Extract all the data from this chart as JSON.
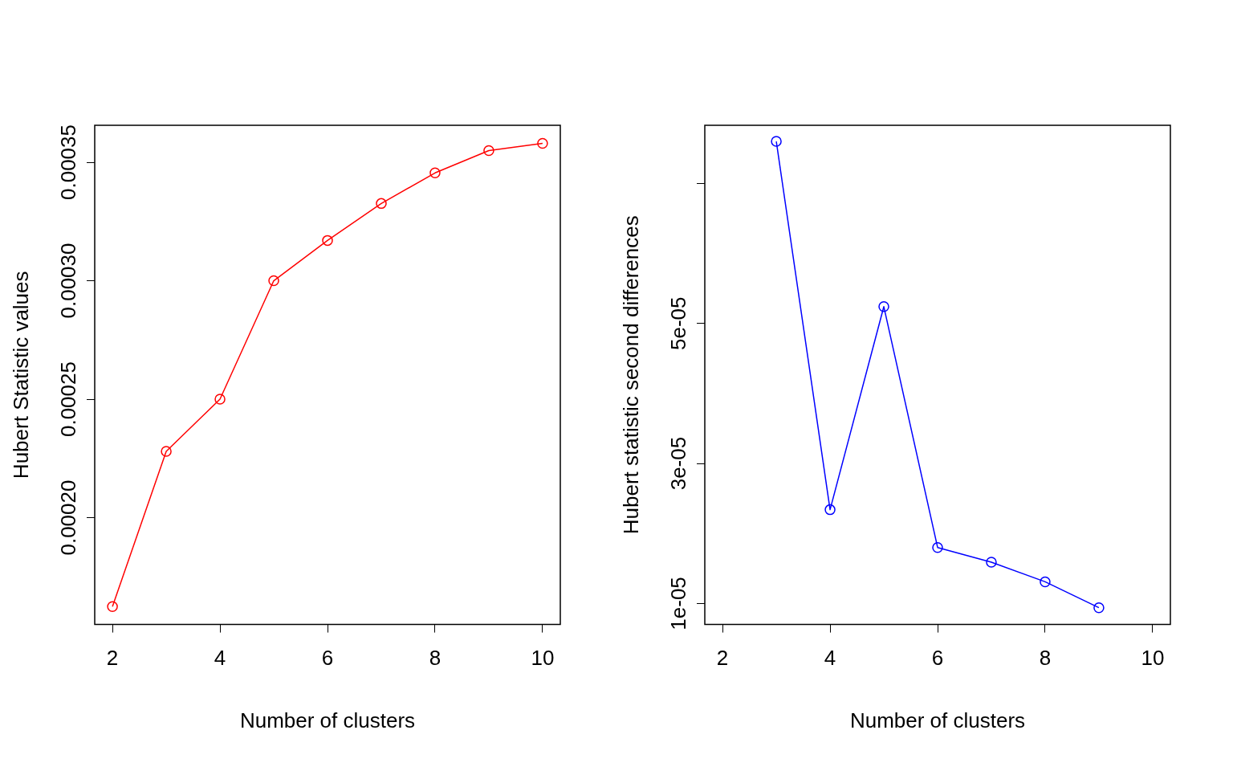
{
  "chart_data": [
    {
      "type": "line",
      "xlabel": "Number of clusters",
      "ylabel": "Hubert Statistic values",
      "marker": "circle",
      "x": [
        2,
        3,
        4,
        5,
        6,
        7,
        8,
        9,
        10
      ],
      "series": [
        {
          "color": "#ff0000",
          "values": [
            0.0001625,
            0.000228,
            0.00025,
            0.0003,
            0.000317,
            0.0003326,
            0.0003455,
            0.0003549,
            0.000358
          ]
        }
      ],
      "xlim": [
        1.67,
        10.33
      ],
      "xticks": [
        2,
        4,
        6,
        8,
        10
      ],
      "ylim": [
        0.0001549,
        0.0003656
      ],
      "yticks": [
        {
          "value": 0.0002,
          "label": "0.00020"
        },
        {
          "value": 0.00025,
          "label": "0.00025"
        },
        {
          "value": 0.0003,
          "label": "0.00030"
        },
        {
          "value": 0.00035,
          "label": "0.00035"
        }
      ]
    },
    {
      "type": "line",
      "xlabel": "Number of clusters",
      "ylabel": "Hubert statistic second differences",
      "marker": "circle",
      "x": [
        3,
        4,
        5,
        6,
        7,
        8,
        9
      ],
      "series": [
        {
          "color": "#0000ff",
          "values": [
            7.6e-05,
            2.34e-05,
            5.24e-05,
            1.8e-05,
            1.59e-05,
            1.31e-05,
            9.4e-06
          ]
        }
      ],
      "xlim": [
        1.67,
        10.33
      ],
      "xticks": [
        2,
        4,
        6,
        8,
        10
      ],
      "ylim": [
        7e-06,
        7.83e-05
      ],
      "yticks": [
        {
          "value": 1e-05,
          "label": "1e-05"
        },
        {
          "value": 3e-05,
          "label": "3e-05"
        },
        {
          "value": 5e-05,
          "label": "5e-05"
        },
        {
          "value": 7e-05,
          "label": null
        }
      ]
    }
  ]
}
